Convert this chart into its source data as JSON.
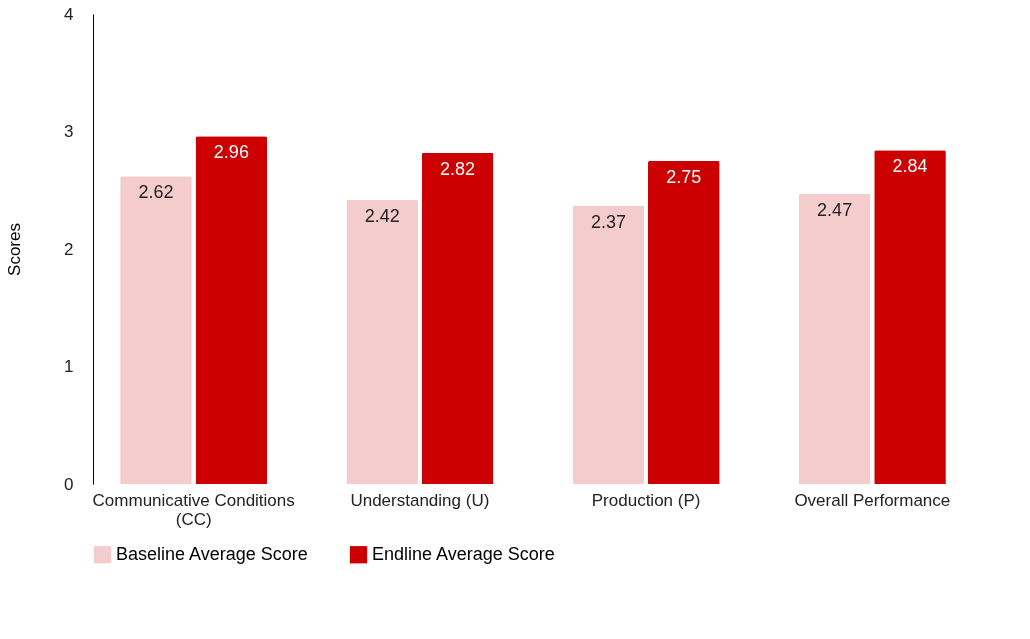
{
  "chart_data": {
    "type": "bar",
    "ylabel": "Scores",
    "categories": [
      "Communicative Conditions (CC)",
      "Understanding (U)",
      "Production (P)",
      "Overall Performance"
    ],
    "series": [
      {
        "name": "Baseline Average Score",
        "color": "#f4cccc",
        "values": [
          2.62,
          2.42,
          2.37,
          2.47
        ]
      },
      {
        "name": "Endline Average Score",
        "color": "#cc0000",
        "values": [
          2.96,
          2.82,
          2.75,
          2.84
        ]
      }
    ],
    "ylim": [
      0,
      4
    ],
    "yticks": [
      0,
      1,
      2,
      3,
      4
    ],
    "grid": false,
    "legend": "bottom",
    "data_labels": true
  }
}
